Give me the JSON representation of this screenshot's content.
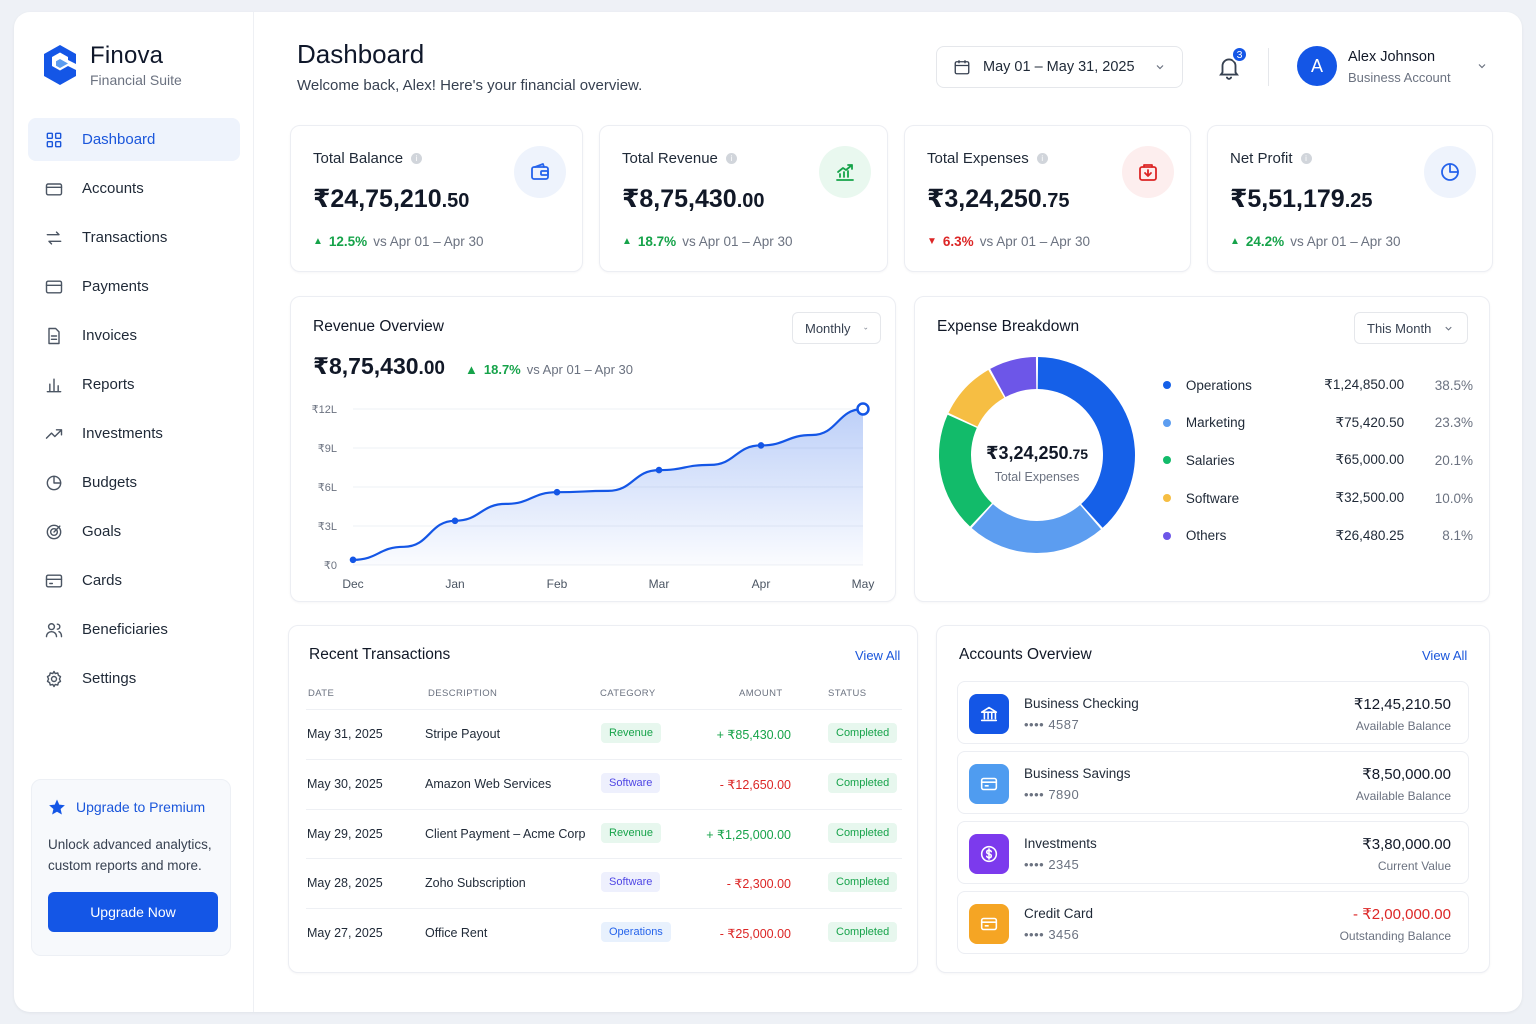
{
  "brand": {
    "name": "Finova",
    "subtitle": "Financial Suite"
  },
  "nav": [
    {
      "label": "Dashboard",
      "icon": "grid-icon",
      "active": true
    },
    {
      "label": "Accounts",
      "icon": "wallet-icon"
    },
    {
      "label": "Transactions",
      "icon": "transfer-icon"
    },
    {
      "label": "Payments",
      "icon": "credit-card-icon"
    },
    {
      "label": "Invoices",
      "icon": "document-icon"
    },
    {
      "label": "Reports",
      "icon": "bar-chart-icon"
    },
    {
      "label": "Investments",
      "icon": "trend-icon"
    },
    {
      "label": "Budgets",
      "icon": "pie-icon"
    },
    {
      "label": "Goals",
      "icon": "target-icon"
    },
    {
      "label": "Cards",
      "icon": "card-icon"
    },
    {
      "label": "Beneficiaries",
      "icon": "users-icon"
    },
    {
      "label": "Settings",
      "icon": "gear-icon"
    }
  ],
  "upgrade": {
    "title": "Upgrade to Premium",
    "text": "Unlock advanced analytics, custom reports and more.",
    "button": "Upgrade Now"
  },
  "header": {
    "title": "Dashboard",
    "subtitle": "Welcome back, Alex! Here's your financial overview.",
    "date_range": "May 01 – May 31, 2025",
    "notifications": "3",
    "user": {
      "initial": "A",
      "name": "Alex Johnson",
      "role": "Business Account"
    }
  },
  "stats": [
    {
      "label": "Total Balance",
      "value": "₹24,75,210",
      "dec": ".50",
      "change": "12.5%",
      "dir": "up",
      "compare": "vs Apr 01 – Apr 30",
      "icon": "wallet-icon",
      "color": "#2563eb",
      "bg": "#eef3fc"
    },
    {
      "label": "Total Revenue",
      "value": "₹8,75,430",
      "dec": ".00",
      "change": "18.7%",
      "dir": "up",
      "compare": "vs Apr 01 – Apr 30",
      "icon": "growth-chart-icon",
      "color": "#16a34a",
      "bg": "#e9f8ef"
    },
    {
      "label": "Total Expenses",
      "value": "₹3,24,250",
      "dec": ".75",
      "change": "6.3%",
      "dir": "down",
      "compare": "vs Apr 01 – Apr 30",
      "icon": "expense-box-icon",
      "color": "#dc2626",
      "bg": "#fdeeee"
    },
    {
      "label": "Net Profit",
      "value": "₹5,51,179",
      "dec": ".25",
      "change": "24.2%",
      "dir": "up",
      "compare": "vs Apr 01 – Apr 30",
      "icon": "pie-chart-icon",
      "color": "#2563eb",
      "bg": "#eef3fc"
    }
  ],
  "revenue": {
    "title": "Revenue Overview",
    "period": "Monthly",
    "value": "₹8,75,430",
    "dec": ".00",
    "change": "18.7%",
    "compare": "vs Apr 01 – Apr 30"
  },
  "expense": {
    "title": "Expense Breakdown",
    "period": "This Month",
    "center_value": "₹3,24,250",
    "center_dec": ".75",
    "center_label": "Total Expenses",
    "items": [
      {
        "name": "Operations",
        "amount": "₹1,24,850.00",
        "pct": "38.5%",
        "share": 38.5,
        "color": "#1560e8"
      },
      {
        "name": "Marketing",
        "amount": "₹75,420.50",
        "pct": "23.3%",
        "share": 23.3,
        "color": "#5c9df0"
      },
      {
        "name": "Salaries",
        "amount": "₹65,000.00",
        "pct": "20.1%",
        "share": 20.1,
        "color": "#12bb6a"
      },
      {
        "name": "Software",
        "amount": "₹32,500.00",
        "pct": "10.0%",
        "share": 10.0,
        "color": "#f6be43"
      },
      {
        "name": "Others",
        "amount": "₹26,480.25",
        "pct": "8.1%",
        "share": 8.1,
        "color": "#6d56e8"
      }
    ]
  },
  "chart_data": {
    "type": "area",
    "categories": [
      "Dec",
      "Jan",
      "Feb",
      "Mar",
      "Apr",
      "May"
    ],
    "x": [
      "Dec",
      "Dec-Jan",
      "Jan",
      "Jan-Feb",
      "Feb",
      "Feb-Mar",
      "Mar",
      "Mar-Apr",
      "Apr",
      "Apr-May",
      "May"
    ],
    "values": [
      0.4,
      1.4,
      3.4,
      4.7,
      5.6,
      5.7,
      7.3,
      7.7,
      9.2,
      10.0,
      12.0
    ],
    "marked_points": [
      "Jan",
      "Feb",
      "Mar",
      "Apr",
      "May"
    ],
    "y_ticks": [
      "₹0",
      "₹3L",
      "₹6L",
      "₹9L",
      "₹12L"
    ],
    "ylim": [
      0,
      12
    ],
    "yunit": "lakh ₹",
    "grid": true,
    "color": "#1456e6"
  },
  "transactions": {
    "title": "Recent Transactions",
    "view_all": "View All",
    "columns": [
      "DATE",
      "DESCRIPTION",
      "CATEGORY",
      "AMOUNT",
      "STATUS"
    ],
    "rows": [
      {
        "date": "May 31, 2025",
        "desc": "Stripe Payout",
        "cat": "Revenue",
        "amount": "+ ₹85,430.00",
        "sign": "pos",
        "status": "Completed"
      },
      {
        "date": "May 30, 2025",
        "desc": "Amazon Web Services",
        "cat": "Software",
        "amount": "- ₹12,650.00",
        "sign": "neg",
        "status": "Completed"
      },
      {
        "date": "May 29, 2025",
        "desc": "Client Payment – Acme Corp",
        "cat": "Revenue",
        "amount": "+ ₹1,25,000.00",
        "sign": "pos",
        "status": "Completed"
      },
      {
        "date": "May 28, 2025",
        "desc": "Zoho Subscription",
        "cat": "Software",
        "amount": "- ₹2,300.00",
        "sign": "neg",
        "status": "Completed"
      },
      {
        "date": "May 27, 2025",
        "desc": "Office Rent",
        "cat": "Operations",
        "amount": "- ₹25,000.00",
        "sign": "neg",
        "status": "Completed"
      }
    ]
  },
  "accounts": {
    "title": "Accounts Overview",
    "view_all": "View All",
    "items": [
      {
        "name": "Business Checking",
        "number": "•••• 4587",
        "balance": "₹12,45,210.50",
        "sub": "Available Balance",
        "icon": "bank-icon",
        "color": "#1456e6",
        "neg": false
      },
      {
        "name": "Business Savings",
        "number": "•••• 7890",
        "balance": "₹8,50,000.00",
        "sub": "Available Balance",
        "icon": "savings-card-icon",
        "color": "#4f9cf0",
        "neg": false
      },
      {
        "name": "Investments",
        "number": "•••• 2345",
        "balance": "₹3,80,000.00",
        "sub": "Current Value",
        "icon": "dollar-coin-icon",
        "color": "#7c3aed",
        "neg": false
      },
      {
        "name": "Credit Card",
        "number": "•••• 3456",
        "balance": "- ₹2,00,000.00",
        "sub": "Outstanding Balance",
        "icon": "credit-card-icon",
        "color": "#f5a524",
        "neg": true
      }
    ]
  }
}
